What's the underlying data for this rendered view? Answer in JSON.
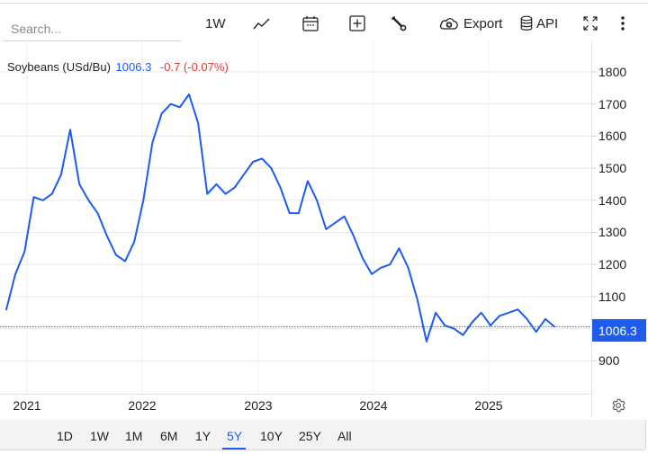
{
  "search": {
    "placeholder": "Search..."
  },
  "toolbar": {
    "interval_label": "1W",
    "export_label": "Export",
    "api_label": "API",
    "icons": [
      "line-chart-icon",
      "calendar-icon",
      "add-box-icon",
      "wrench-icon",
      "cloud-download-icon",
      "database-icon",
      "fullscreen-icon",
      "more-vertical-icon"
    ]
  },
  "legend": {
    "name": "Soybeans (USd/Bu)",
    "price": "1006.3",
    "change": "-0.7 (-0.07%)"
  },
  "colors": {
    "line": "#1e5bef",
    "positive": "#1e5bef",
    "negative": "#e53935",
    "grid": "#e8e8e8"
  },
  "y_axis": {
    "ticks": [
      "1800",
      "1700",
      "1600",
      "1500",
      "1400",
      "1300",
      "1200",
      "1100",
      "900"
    ],
    "current_price_tag": "1006.3"
  },
  "x_axis": {
    "ticks": [
      "2021",
      "2022",
      "2023",
      "2024",
      "2025"
    ]
  },
  "ranges": {
    "items": [
      "1D",
      "1W",
      "1M",
      "6M",
      "1Y",
      "5Y",
      "10Y",
      "25Y",
      "All"
    ],
    "active": "5Y"
  },
  "chart_data": {
    "type": "line",
    "title": "Soybeans (USd/Bu)",
    "xlabel": "",
    "ylabel": "USd/Bu",
    "ylim": [
      850,
      1850
    ],
    "grid": true,
    "legend_position": "top-left",
    "current_value": 1006.3,
    "change": -0.7,
    "change_pct": -0.07,
    "x_ticks": [
      "2021",
      "2022",
      "2023",
      "2024",
      "2025"
    ],
    "y_ticks": [
      900,
      1000,
      1100,
      1200,
      1300,
      1400,
      1500,
      1600,
      1700,
      1800
    ],
    "series": [
      {
        "name": "Soybeans",
        "x": [
          "2020-10",
          "2020-11",
          "2020-12",
          "2021-01",
          "2021-02",
          "2021-03",
          "2021-04",
          "2021-05",
          "2021-06",
          "2021-07",
          "2021-08",
          "2021-09",
          "2021-10",
          "2021-11",
          "2021-12",
          "2022-01",
          "2022-02",
          "2022-03",
          "2022-04",
          "2022-05",
          "2022-06",
          "2022-07",
          "2022-08",
          "2022-09",
          "2022-10",
          "2022-11",
          "2022-12",
          "2023-01",
          "2023-02",
          "2023-03",
          "2023-04",
          "2023-05",
          "2023-06",
          "2023-07",
          "2023-08",
          "2023-09",
          "2023-10",
          "2023-11",
          "2023-12",
          "2024-01",
          "2024-02",
          "2024-03",
          "2024-04",
          "2024-05",
          "2024-06",
          "2024-07",
          "2024-08",
          "2024-09",
          "2024-10",
          "2024-11",
          "2024-12",
          "2025-01",
          "2025-02",
          "2025-03",
          "2025-04",
          "2025-05",
          "2025-06",
          "2025-07",
          "2025-08",
          "2025-09",
          "2025-10"
        ],
        "values": [
          1060,
          1170,
          1240,
          1410,
          1400,
          1420,
          1480,
          1620,
          1450,
          1400,
          1360,
          1290,
          1230,
          1210,
          1270,
          1400,
          1580,
          1670,
          1700,
          1690,
          1730,
          1640,
          1420,
          1450,
          1420,
          1440,
          1480,
          1520,
          1530,
          1500,
          1440,
          1360,
          1360,
          1460,
          1400,
          1310,
          1330,
          1350,
          1290,
          1220,
          1170,
          1190,
          1200,
          1250,
          1190,
          1090,
          960,
          1050,
          1010,
          1000,
          980,
          1020,
          1050,
          1010,
          1040,
          1050,
          1060,
          1030,
          990,
          1030,
          1006.3
        ]
      }
    ]
  }
}
